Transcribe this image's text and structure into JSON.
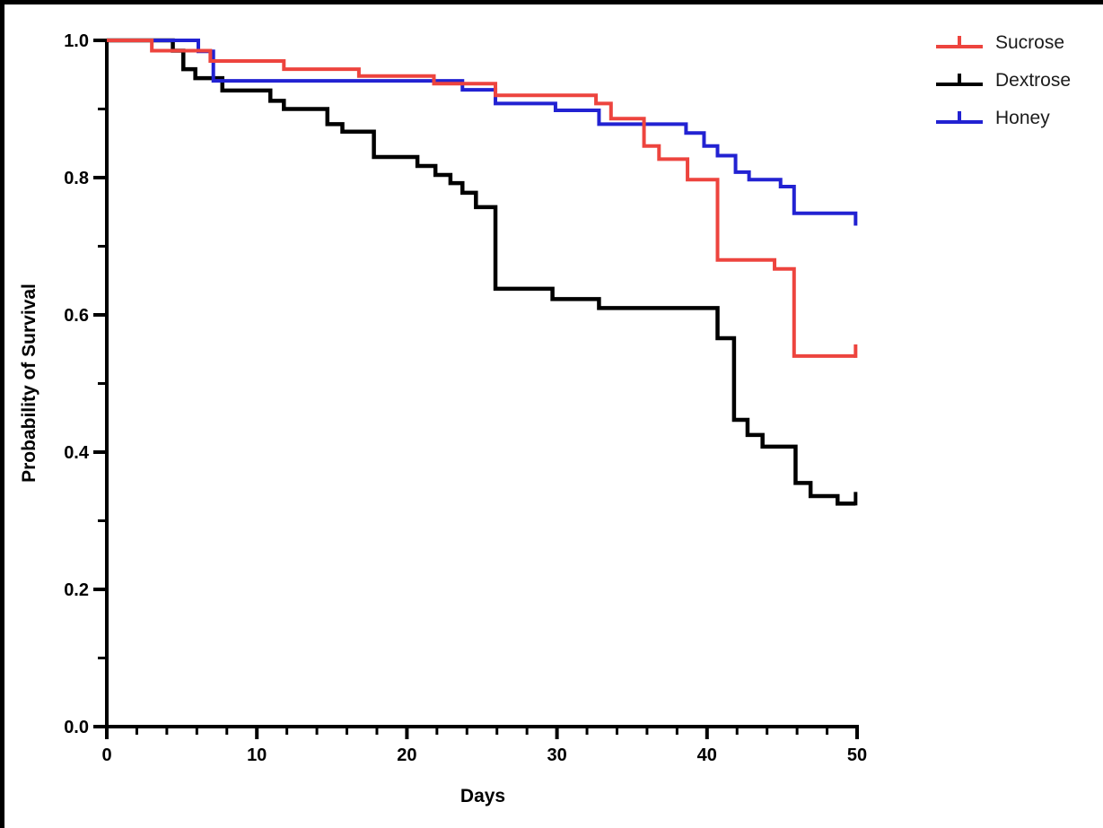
{
  "figure": {
    "background": "#ffffff",
    "frame_color": "#000000"
  },
  "chart_data": {
    "type": "line",
    "variant": "kaplan_meier_survival_step",
    "title": "",
    "xlabel": "Days",
    "ylabel": "Probability of Survival",
    "xlim": [
      0,
      50
    ],
    "ylim": [
      0.0,
      1.0
    ],
    "x_major_ticks": [
      0,
      10,
      20,
      30,
      40,
      50
    ],
    "x_minor_tick_interval": 2,
    "y_major_ticks": [
      0.0,
      0.2,
      0.4,
      0.6,
      0.8,
      1.0
    ],
    "y_minor_tick_interval": 0.1,
    "grid": false,
    "legend_position": "top-right",
    "axis_color": "#000000",
    "series": [
      {
        "name": "Sucrose",
        "color": "#ED443E",
        "start": [
          0,
          1.0
        ],
        "drops": [
          [
            3,
            0.985
          ],
          [
            6.9,
            0.97
          ],
          [
            11.8,
            0.958
          ],
          [
            16.8,
            0.948
          ],
          [
            21.8,
            0.937
          ],
          [
            25.9,
            0.92
          ],
          [
            32.6,
            0.908
          ],
          [
            33.6,
            0.886
          ],
          [
            35.8,
            0.846
          ],
          [
            36.8,
            0.827
          ],
          [
            38.7,
            0.797
          ],
          [
            40.7,
            0.68
          ],
          [
            44.5,
            0.667
          ],
          [
            45.8,
            0.54
          ]
        ],
        "end_day": 49.9,
        "end_marker": "censor-tick-up"
      },
      {
        "name": "Dextrose",
        "color": "#000000",
        "start": [
          0,
          1.0
        ],
        "drops": [
          [
            4.4,
            0.985
          ],
          [
            5.1,
            0.958
          ],
          [
            5.9,
            0.945
          ],
          [
            7.7,
            0.927
          ],
          [
            10.9,
            0.912
          ],
          [
            11.8,
            0.9
          ],
          [
            14.7,
            0.878
          ],
          [
            15.7,
            0.867
          ],
          [
            17.8,
            0.83
          ],
          [
            20.7,
            0.817
          ],
          [
            21.9,
            0.804
          ],
          [
            22.9,
            0.792
          ],
          [
            23.7,
            0.778
          ],
          [
            24.6,
            0.757
          ],
          [
            25.9,
            0.638
          ],
          [
            29.7,
            0.623
          ],
          [
            32.8,
            0.61
          ],
          [
            40.7,
            0.566
          ],
          [
            41.8,
            0.447
          ],
          [
            42.7,
            0.425
          ],
          [
            43.7,
            0.408
          ],
          [
            45.9,
            0.355
          ],
          [
            46.9,
            0.336
          ],
          [
            48.7,
            0.325
          ]
        ],
        "end_day": 49.9,
        "end_marker": "censor-tick-up"
      },
      {
        "name": "Honey",
        "color": "#2222D2",
        "start": [
          0,
          1.0
        ],
        "drops": [
          [
            6.1,
            0.984
          ],
          [
            7.1,
            0.941
          ],
          [
            23.7,
            0.928
          ],
          [
            25.9,
            0.908
          ],
          [
            29.9,
            0.898
          ],
          [
            32.8,
            0.878
          ],
          [
            38.6,
            0.865
          ],
          [
            39.8,
            0.846
          ],
          [
            40.7,
            0.832
          ],
          [
            41.9,
            0.808
          ],
          [
            42.8,
            0.797
          ],
          [
            44.9,
            0.787
          ],
          [
            45.8,
            0.748
          ],
          [
            49.9,
            0.73
          ]
        ],
        "end_day": 49.9,
        "end_marker": "none"
      }
    ]
  }
}
